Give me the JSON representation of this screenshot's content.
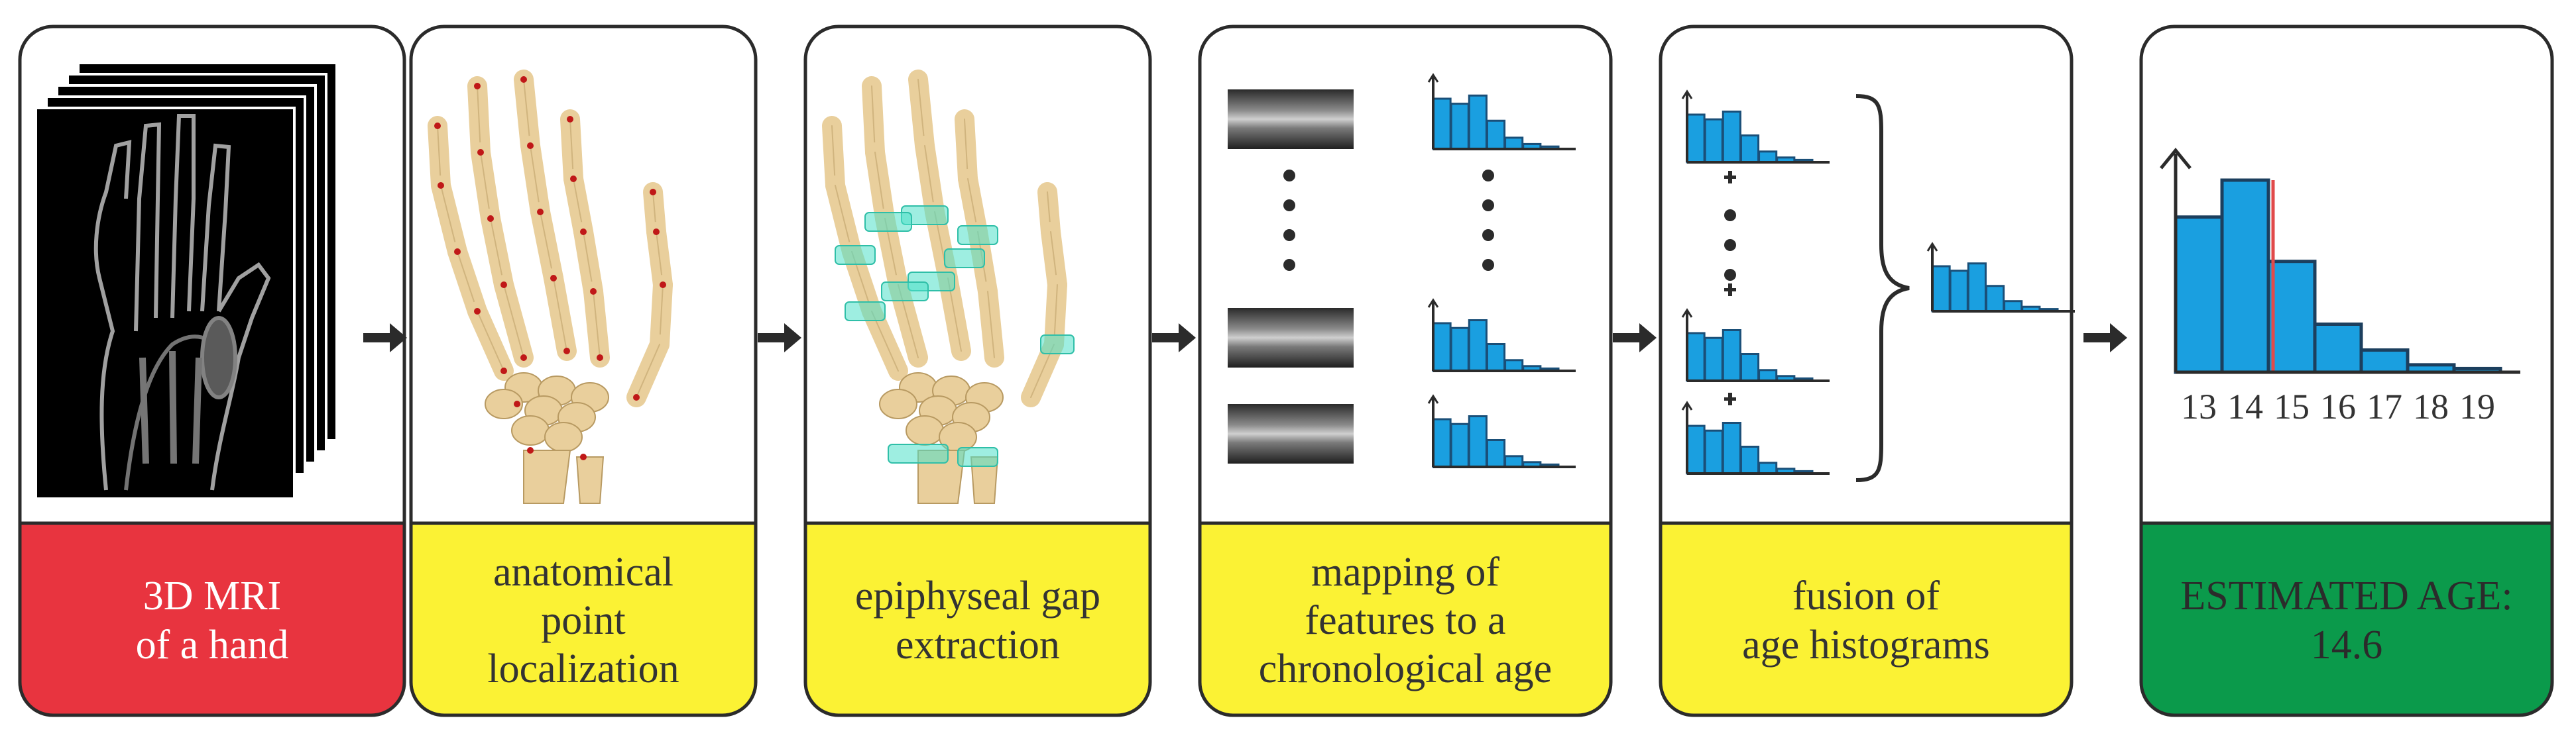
{
  "colors": {
    "red": "#e8343f",
    "yellow": "#fbf234",
    "green": "#0b9a4b",
    "bar": "#1a9fe0",
    "bone": "#e9cf9c",
    "cyan": "#4fe0c8",
    "marker": "#c01818"
  },
  "steps": [
    {
      "id": "mri",
      "color": "red",
      "lines": [
        "3D MRI",
        "of a hand"
      ]
    },
    {
      "id": "localization",
      "color": "yellow",
      "lines": [
        "anatomical",
        "point",
        "localization"
      ]
    },
    {
      "id": "extraction",
      "color": "yellow",
      "lines": [
        "epiphyseal gap",
        "extraction"
      ]
    },
    {
      "id": "mapping",
      "color": "yellow",
      "lines": [
        "mapping of",
        "features to a",
        "chronological age"
      ]
    },
    {
      "id": "fusion",
      "color": "yellow",
      "lines": [
        "fusion of",
        "age histograms"
      ]
    },
    {
      "id": "result",
      "color": "green",
      "lines": [
        "ESTIMATED AGE:",
        "14.6"
      ]
    }
  ],
  "chart_data": {
    "type": "bar",
    "categories": [
      "13",
      "14",
      "15",
      "16",
      "17",
      "18",
      "19"
    ],
    "values": [
      0.42,
      0.52,
      0.3,
      0.13,
      0.06,
      0.02,
      0.01
    ],
    "estimate_marker": 14.6
  }
}
